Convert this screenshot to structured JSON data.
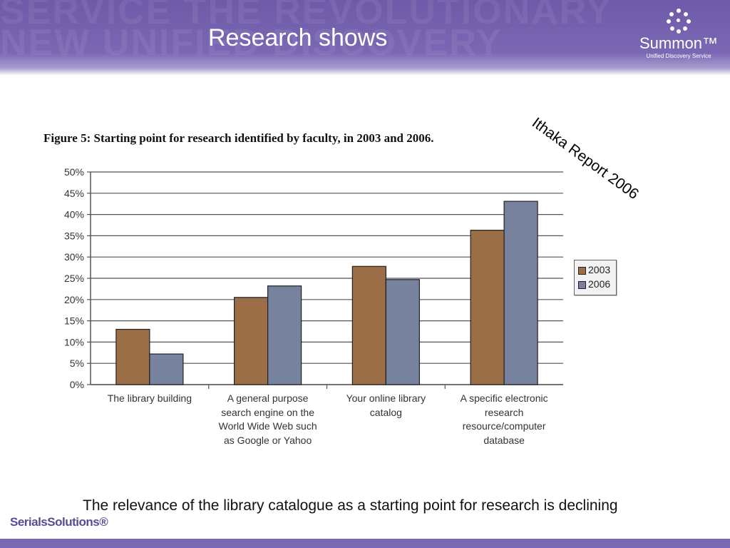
{
  "slide": {
    "title": "Research shows",
    "watermark": [
      "SERVICE THE REVOLUTIONARY",
      "NEW UNIFIED DISCOVERY"
    ],
    "logo": {
      "icon": "summon-dots-icon",
      "name": "Summon™",
      "tagline": "Unified Discovery Service"
    },
    "annotation": "Ithaka Report 2006",
    "footer_text": "The relevance of the library catalogue as a starting point for  research is declining",
    "brand": "SerialsSolutions®",
    "colors": {
      "header": "#7b68b4",
      "series_2003": "#9b6e48",
      "series_2006": "#76829e"
    }
  },
  "chart_data": {
    "type": "bar",
    "title": "Figure 5: Starting point for research identified by faculty, in 2003 and 2006.",
    "categories": [
      "The library building",
      "A general purpose search engine on the World Wide Web such as Google or Yahoo",
      "Your online library catalog",
      "A specific electronic research resource/computer database"
    ],
    "category_lines": [
      [
        "The library building"
      ],
      [
        "A general purpose",
        "search engine on the",
        "World Wide Web such",
        "as Google or Yahoo"
      ],
      [
        "Your online library",
        "catalog"
      ],
      [
        "A specific electronic",
        "research",
        "resource/computer",
        "database"
      ]
    ],
    "series": [
      {
        "name": "2003",
        "values": [
          13,
          20.5,
          27.8,
          36.3
        ],
        "color": "#9b6e48"
      },
      {
        "name": "2006",
        "values": [
          7.2,
          23.2,
          24.7,
          43.1
        ],
        "color": "#76829e"
      }
    ],
    "yticks": [
      "0%",
      "5%",
      "10%",
      "15%",
      "20%",
      "25%",
      "30%",
      "35%",
      "40%",
      "45%",
      "50%"
    ],
    "ylim": [
      0,
      50
    ],
    "grid": true,
    "legend": "right"
  }
}
